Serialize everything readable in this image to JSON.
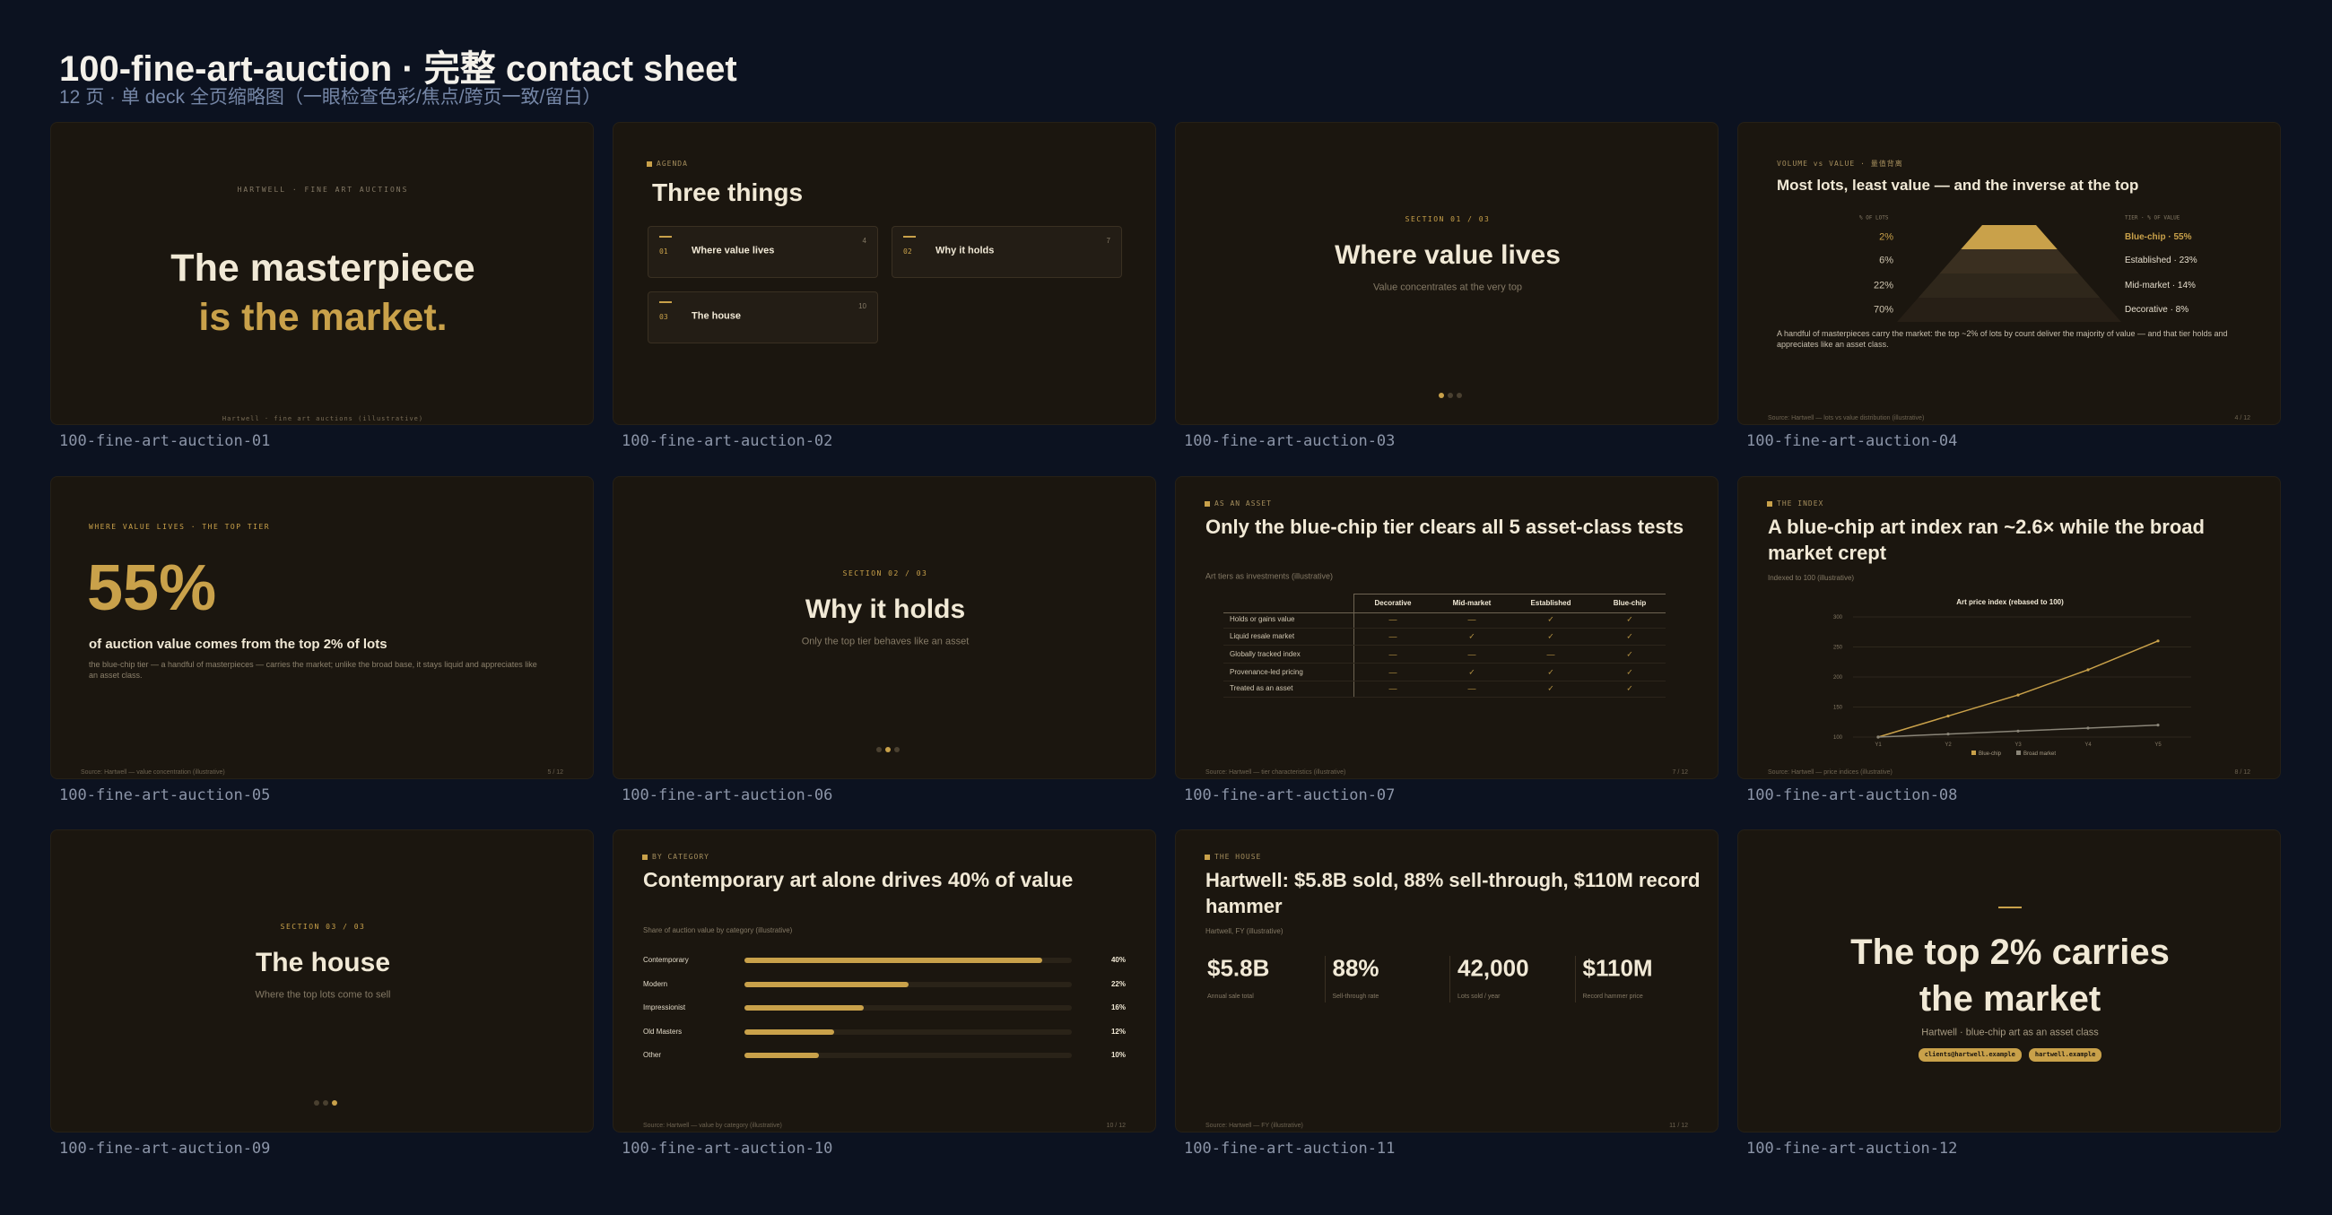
{
  "header": {
    "title": "100-fine-art-auction · 完整 contact sheet",
    "subtitle": "12 页 · 单 deck 全页缩略图（一眼检查色彩/焦点/跨页一致/留白）"
  },
  "slides": [
    {
      "label": "100-fine-art-auction-01",
      "kicker": "HARTWELL · FINE ART AUCTIONS",
      "title_line1": "The masterpiece",
      "title_line2": "is the market.",
      "footer": "Hartwell · fine art auctions (illustrative)"
    },
    {
      "label": "100-fine-art-auction-02",
      "kicker": "AGENDA",
      "title": "Three things",
      "items": [
        {
          "num": "01",
          "text": "Where value lives",
          "page": "4"
        },
        {
          "num": "02",
          "text": "Why it holds",
          "page": "7"
        },
        {
          "num": "03",
          "text": "The house",
          "page": "10"
        }
      ]
    },
    {
      "label": "100-fine-art-auction-03",
      "kicker": "SECTION 01 / 03",
      "title": "Where value lives",
      "subtitle": "Value concentrates at the very top"
    },
    {
      "label": "100-fine-art-auction-04",
      "kicker": "VOLUME vs VALUE · 量值背离",
      "title": "Most lots, least value — and the inverse at the top",
      "left_head": "% OF LOTS",
      "right_head": "TIER · % OF VALUE",
      "lots": [
        "2%",
        "6%",
        "22%",
        "70%"
      ],
      "tiers": [
        "Blue-chip · 55%",
        "Established · 23%",
        "Mid-market · 14%",
        "Decorative · 8%"
      ],
      "body": "A handful of masterpieces carry the market: the top ~2% of lots by count deliver the majority of value — and that tier holds and appreciates like an asset class.",
      "footer": "Source: Hartwell — lots vs value distribution (illustrative)",
      "page": "4 / 12"
    },
    {
      "label": "100-fine-art-auction-05",
      "kicker": "WHERE VALUE LIVES · THE TOP TIER",
      "big": "55%",
      "headline": "of auction value comes from the top 2% of lots",
      "body": "the blue-chip tier — a handful of masterpieces — carries the market; unlike the broad base, it stays liquid and appreciates like an asset class.",
      "footer": "Source: Hartwell — value concentration (illustrative)",
      "page": "5 / 12"
    },
    {
      "label": "100-fine-art-auction-06",
      "kicker": "SECTION 02 / 03",
      "title": "Why it holds",
      "subtitle": "Only the top tier behaves like an asset"
    },
    {
      "label": "100-fine-art-auction-07",
      "kicker": "AS AN ASSET",
      "title": "Only the blue-chip tier clears all 5 asset-class tests",
      "subtitle": "Art tiers as investments (illustrative)",
      "table": {
        "columns": [
          "Decorative",
          "Mid-market",
          "Established",
          "Blue-chip"
        ],
        "rows": [
          [
            "Holds or gains value",
            "—",
            "—",
            "✓",
            "✓"
          ],
          [
            "Liquid resale market",
            "—",
            "✓",
            "✓",
            "✓"
          ],
          [
            "Globally tracked index",
            "—",
            "—",
            "—",
            "✓"
          ],
          [
            "Provenance-led pricing",
            "—",
            "✓",
            "✓",
            "✓"
          ],
          [
            "Treated as an asset",
            "—",
            "—",
            "✓",
            "✓"
          ]
        ]
      },
      "footer": "Source: Hartwell — tier characteristics (illustrative)",
      "page": "7 / 12"
    },
    {
      "label": "100-fine-art-auction-08",
      "kicker": "THE INDEX",
      "title": "A blue-chip art index ran ~2.6× while the broad market crept",
      "subtitle": "Indexed to 100 (illustrative)",
      "chart": {
        "type": "line",
        "title": "Art price index (rebased to 100)",
        "categories": [
          "Y1",
          "Y2",
          "Y3",
          "Y4",
          "Y5"
        ],
        "series": [
          {
            "name": "Blue-chip",
            "color": "#c9a14a",
            "values": [
              100,
              135,
              170,
              212,
              260
            ]
          },
          {
            "name": "Broad market",
            "color": "#8a8578",
            "values": [
              100,
              105,
              110,
              115,
              120
            ]
          }
        ],
        "ylim": [
          100,
          300
        ],
        "yticks": [
          100,
          150,
          200,
          250,
          300
        ],
        "grid": true
      },
      "footer": "Source: Hartwell — price indices (illustrative)",
      "page": "8 / 12"
    },
    {
      "label": "100-fine-art-auction-09",
      "kicker": "SECTION 03 / 03",
      "title": "The house",
      "subtitle": "Where the top lots come to sell"
    },
    {
      "label": "100-fine-art-auction-10",
      "kicker": "BY CATEGORY",
      "title": "Contemporary art alone drives 40% of value",
      "subtitle": "Share of auction value by category (illustrative)",
      "chart": {
        "type": "bar",
        "categories": [
          "Contemporary",
          "Modern",
          "Impressionist",
          "Old Masters",
          "Other"
        ],
        "values": [
          40,
          22,
          16,
          12,
          10
        ],
        "value_labels": [
          "40%",
          "22%",
          "16%",
          "12%",
          "10%"
        ],
        "color": "#c9a14a",
        "xlim": [
          0,
          44
        ]
      },
      "footer": "Source: Hartwell — value by category (illustrative)",
      "page": "10 / 12"
    },
    {
      "label": "100-fine-art-auction-11",
      "kicker": "THE HOUSE",
      "title": "Hartwell: $5.8B sold, 88% sell-through, $110M record hammer",
      "subtitle": "Hartwell, FY (illustrative)",
      "stats": [
        {
          "value": "$5.8B",
          "label": "Annual sale total"
        },
        {
          "value": "88%",
          "label": "Sell-through rate"
        },
        {
          "value": "42,000",
          "label": "Lots sold / year"
        },
        {
          "value": "$110M",
          "label": "Record hammer price"
        }
      ],
      "footer": "Source: Hartwell — FY (illustrative)",
      "page": "11 / 12"
    },
    {
      "label": "100-fine-art-auction-12",
      "title": "The top 2% carries the market",
      "subtitle": "Hartwell · blue-chip art as an asset class",
      "pills": [
        "clients@hartwell.example",
        "hartwell.example"
      ]
    }
  ]
}
